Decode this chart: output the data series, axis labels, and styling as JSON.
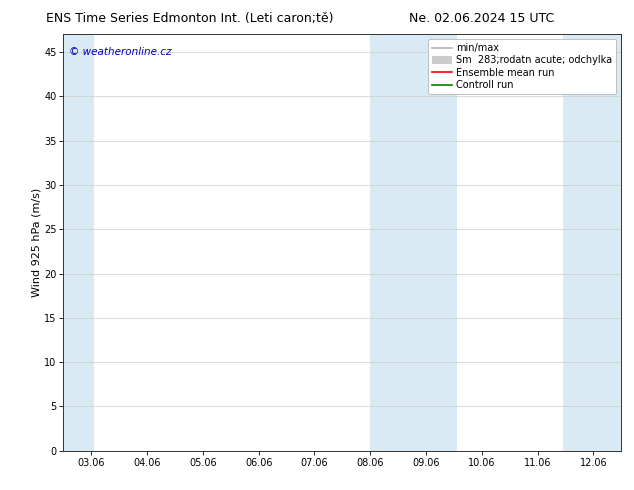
{
  "title_left": "ENS Time Series Edmonton Int. (Leti caron;tě)",
  "title_right": "Ne. 02.06.2024 15 UTC",
  "ylabel": "Wind 925 hPa (m/s)",
  "watermark": "© weatheronline.cz",
  "xtick_labels": [
    "03.06",
    "04.06",
    "05.06",
    "06.06",
    "07.06",
    "08.06",
    "09.06",
    "10.06",
    "11.06",
    "12.06"
  ],
  "xtick_positions": [
    0,
    1,
    2,
    3,
    4,
    5,
    6,
    7,
    8,
    9
  ],
  "ylim": [
    0,
    47
  ],
  "yticks": [
    0,
    5,
    10,
    15,
    20,
    25,
    30,
    35,
    40,
    45
  ],
  "xlim": [
    -0.5,
    9.5
  ],
  "shaded_bands": [
    {
      "x_start": -0.5,
      "x_end": 0.05,
      "color": "#daeaf5"
    },
    {
      "x_start": 5.0,
      "x_end": 6.55,
      "color": "#daeaf5"
    },
    {
      "x_start": 8.45,
      "x_end": 9.5,
      "color": "#daeaf5"
    }
  ],
  "legend_entries": [
    {
      "label": "min/max",
      "color": "#b0b0b0",
      "lw": 1.2,
      "patch": false
    },
    {
      "label": "Sm  283;rodatn acute; odchylka",
      "color": "#cccccc",
      "lw": 8,
      "patch": true
    },
    {
      "label": "Ensemble mean run",
      "color": "#ff0000",
      "lw": 1.2,
      "patch": false
    },
    {
      "label": "Controll run",
      "color": "#008000",
      "lw": 1.2,
      "patch": false
    }
  ],
  "bg_color": "#ffffff",
  "plot_bg_color": "#ffffff",
  "grid_color": "#cccccc",
  "axis_color": "#333333",
  "title_fontsize": 9,
  "label_fontsize": 8,
  "tick_fontsize": 7,
  "legend_fontsize": 7,
  "watermark_color": "#0000bb",
  "watermark_fontsize": 7.5
}
